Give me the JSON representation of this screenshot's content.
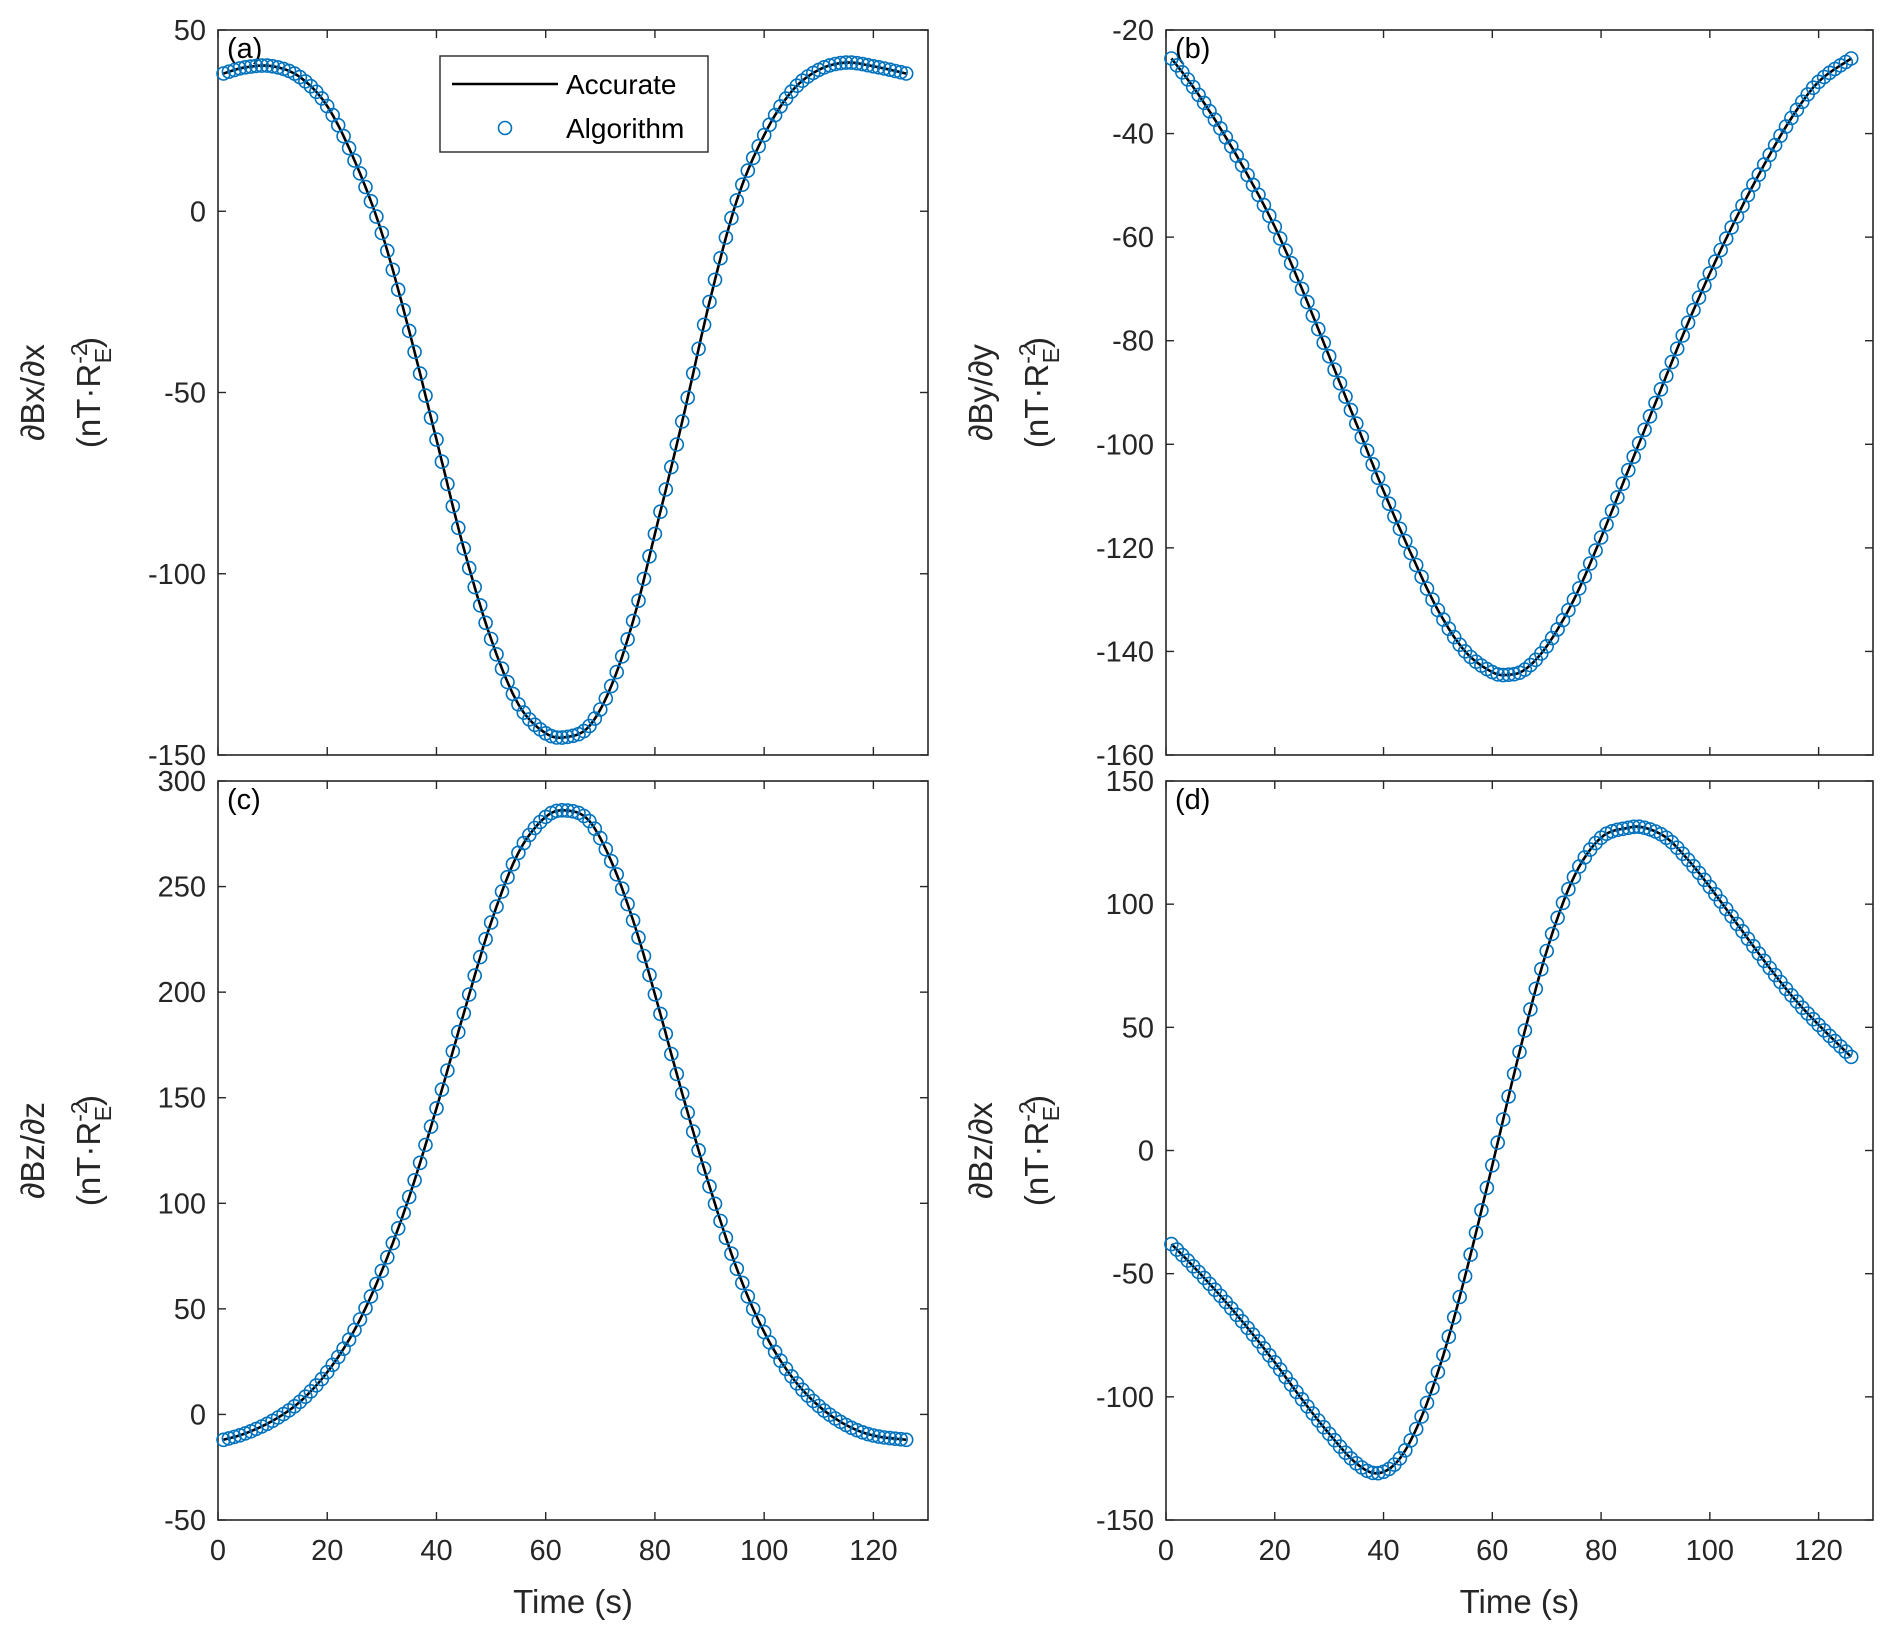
{
  "colors": {
    "accurate_line": "#000000",
    "algorithm_marker": "#0072BD",
    "axes": "#262626",
    "background": "#ffffff"
  },
  "legend": {
    "entries": [
      {
        "label": "Accurate",
        "style": "line"
      },
      {
        "label": "Algorithm",
        "style": "circle-marker"
      }
    ],
    "placement": "top-center of panel (a)"
  },
  "chart_data": [
    {
      "type": "line",
      "panel": "(a)",
      "xlabel": "",
      "ylabel_main": "∂Bx/∂x",
      "ylabel_unit_parts": [
        "(nT·R",
        "-2",
        "E",
        ")"
      ],
      "xlim": [
        0,
        130
      ],
      "ylim": [
        -150,
        50
      ],
      "xticks": [
        0,
        20,
        40,
        60,
        80,
        100,
        120
      ],
      "yticks": [
        -150,
        -100,
        -50,
        0,
        50
      ],
      "show_xtick_labels": false,
      "grid": false,
      "series": [
        {
          "name": "Accurate",
          "x": [
            1,
            5,
            10,
            15,
            20,
            25,
            30,
            35,
            40,
            45,
            50,
            55,
            60,
            64,
            68,
            72,
            76,
            80,
            85,
            90,
            95,
            100,
            105,
            110,
            115,
            120,
            126
          ],
          "y": [
            38,
            39.7,
            40,
            37,
            29,
            14,
            -6,
            -33,
            -63,
            -93,
            -118,
            -136,
            -144,
            -145,
            -142,
            -131,
            -113,
            -89,
            -58,
            -25,
            3,
            21,
            33,
            39,
            41,
            40,
            38
          ]
        },
        {
          "name": "Algorithm",
          "x": [
            1,
            5,
            10,
            15,
            20,
            25,
            30,
            35,
            40,
            45,
            50,
            55,
            60,
            64,
            68,
            72,
            76,
            80,
            85,
            90,
            95,
            100,
            105,
            110,
            115,
            120,
            126
          ],
          "y": [
            38,
            39.7,
            40,
            37,
            29,
            14,
            -6,
            -33,
            -63,
            -93,
            -118,
            -136,
            -144,
            -145,
            -142,
            -131,
            -113,
            -89,
            -58,
            -25,
            3,
            21,
            33,
            39,
            41,
            40,
            38
          ]
        }
      ]
    },
    {
      "type": "line",
      "panel": "(b)",
      "xlabel": "",
      "ylabel_main": "∂By/∂y",
      "ylabel_unit_parts": [
        "(nT·R",
        "-2",
        "E",
        ")"
      ],
      "xlim": [
        0,
        130
      ],
      "ylim": [
        -160,
        -20
      ],
      "xticks": [
        0,
        20,
        40,
        60,
        80,
        100,
        120
      ],
      "yticks": [
        -160,
        -140,
        -120,
        -100,
        -80,
        -60,
        -40,
        -20
      ],
      "show_xtick_labels": false,
      "grid": false,
      "series": [
        {
          "name": "Accurate",
          "x": [
            1,
            5,
            10,
            15,
            20,
            25,
            30,
            35,
            40,
            45,
            50,
            55,
            60,
            63,
            66,
            70,
            75,
            80,
            85,
            90,
            95,
            100,
            105,
            110,
            115,
            120,
            126
          ],
          "y": [
            -25.5,
            -31,
            -39,
            -48,
            -58,
            -70,
            -83,
            -96,
            -109,
            -121,
            -132,
            -140,
            -144,
            -144.5,
            -143.5,
            -139,
            -130,
            -118,
            -105,
            -92,
            -79,
            -67,
            -56,
            -46,
            -37,
            -30,
            -25.5
          ]
        },
        {
          "name": "Algorithm",
          "x": [
            1,
            5,
            10,
            15,
            20,
            25,
            30,
            35,
            40,
            45,
            50,
            55,
            60,
            63,
            66,
            70,
            75,
            80,
            85,
            90,
            95,
            100,
            105,
            110,
            115,
            120,
            126
          ],
          "y": [
            -25.5,
            -31,
            -39,
            -48,
            -58,
            -70,
            -83,
            -96,
            -109,
            -121,
            -132,
            -140,
            -144,
            -144.5,
            -143.5,
            -139,
            -130,
            -118,
            -105,
            -92,
            -79,
            -67,
            -56,
            -46,
            -37,
            -30,
            -25.5
          ]
        }
      ]
    },
    {
      "type": "line",
      "panel": "(c)",
      "xlabel": "Time (s)",
      "ylabel_main": "∂Bz/∂z",
      "ylabel_unit_parts": [
        "(nT·R",
        "-2",
        "E",
        ")"
      ],
      "xlim": [
        0,
        130
      ],
      "ylim": [
        -50,
        300
      ],
      "xticks": [
        0,
        20,
        40,
        60,
        80,
        100,
        120
      ],
      "yticks": [
        -50,
        0,
        50,
        100,
        150,
        200,
        250,
        300
      ],
      "show_xtick_labels": true,
      "grid": false,
      "series": [
        {
          "name": "Accurate",
          "x": [
            1,
            5,
            10,
            15,
            20,
            25,
            30,
            35,
            40,
            45,
            50,
            55,
            60,
            64,
            68,
            72,
            76,
            80,
            85,
            90,
            95,
            100,
            105,
            110,
            115,
            120,
            126
          ],
          "y": [
            -12,
            -9,
            -3,
            6,
            20,
            40,
            68,
            103,
            145,
            190,
            233,
            266,
            283,
            286,
            281,
            262,
            234,
            199,
            152,
            108,
            69,
            39,
            18,
            4,
            -5,
            -10,
            -12
          ]
        },
        {
          "name": "Algorithm",
          "x": [
            1,
            5,
            10,
            15,
            20,
            25,
            30,
            35,
            40,
            45,
            50,
            55,
            60,
            64,
            68,
            72,
            76,
            80,
            85,
            90,
            95,
            100,
            105,
            110,
            115,
            120,
            126
          ],
          "y": [
            -12,
            -9,
            -3,
            6,
            20,
            40,
            68,
            103,
            145,
            190,
            233,
            266,
            283,
            286,
            281,
            262,
            234,
            199,
            152,
            108,
            69,
            39,
            18,
            4,
            -5,
            -10,
            -12
          ]
        }
      ]
    },
    {
      "type": "line",
      "panel": "(d)",
      "xlabel": "Time (s)",
      "ylabel_main": "∂Bz/∂x",
      "ylabel_unit_parts": [
        "(nT·R",
        "-2",
        "E",
        ")"
      ],
      "xlim": [
        0,
        130
      ],
      "ylim": [
        -150,
        150
      ],
      "xticks": [
        0,
        20,
        40,
        60,
        80,
        100,
        120
      ],
      "yticks": [
        -150,
        -100,
        -50,
        0,
        50,
        100,
        150
      ],
      "show_xtick_labels": true,
      "grid": false,
      "series": [
        {
          "name": "Accurate",
          "x": [
            1,
            5,
            10,
            15,
            20,
            25,
            30,
            35,
            39,
            43,
            47,
            51,
            55,
            60,
            65,
            70,
            75,
            80,
            85,
            88,
            92,
            96,
            100,
            105,
            110,
            115,
            120,
            126
          ],
          "y": [
            -38,
            -47,
            -59,
            -72,
            -86,
            -101,
            -115,
            -127,
            -131,
            -125,
            -108,
            -83,
            -51,
            -6,
            40,
            81,
            111,
            127,
            131,
            131,
            127,
            118,
            107,
            92,
            77,
            63,
            51,
            38
          ]
        },
        {
          "name": "Algorithm",
          "x": [
            1,
            5,
            10,
            15,
            20,
            25,
            30,
            35,
            39,
            43,
            47,
            51,
            55,
            60,
            65,
            70,
            75,
            80,
            85,
            88,
            92,
            96,
            100,
            105,
            110,
            115,
            120,
            126
          ],
          "y": [
            -38,
            -47,
            -59,
            -72,
            -86,
            -101,
            -115,
            -127,
            -131,
            -125,
            -108,
            -83,
            -51,
            -6,
            40,
            81,
            111,
            127,
            131,
            131,
            127,
            118,
            107,
            92,
            77,
            63,
            51,
            38
          ]
        }
      ]
    }
  ]
}
